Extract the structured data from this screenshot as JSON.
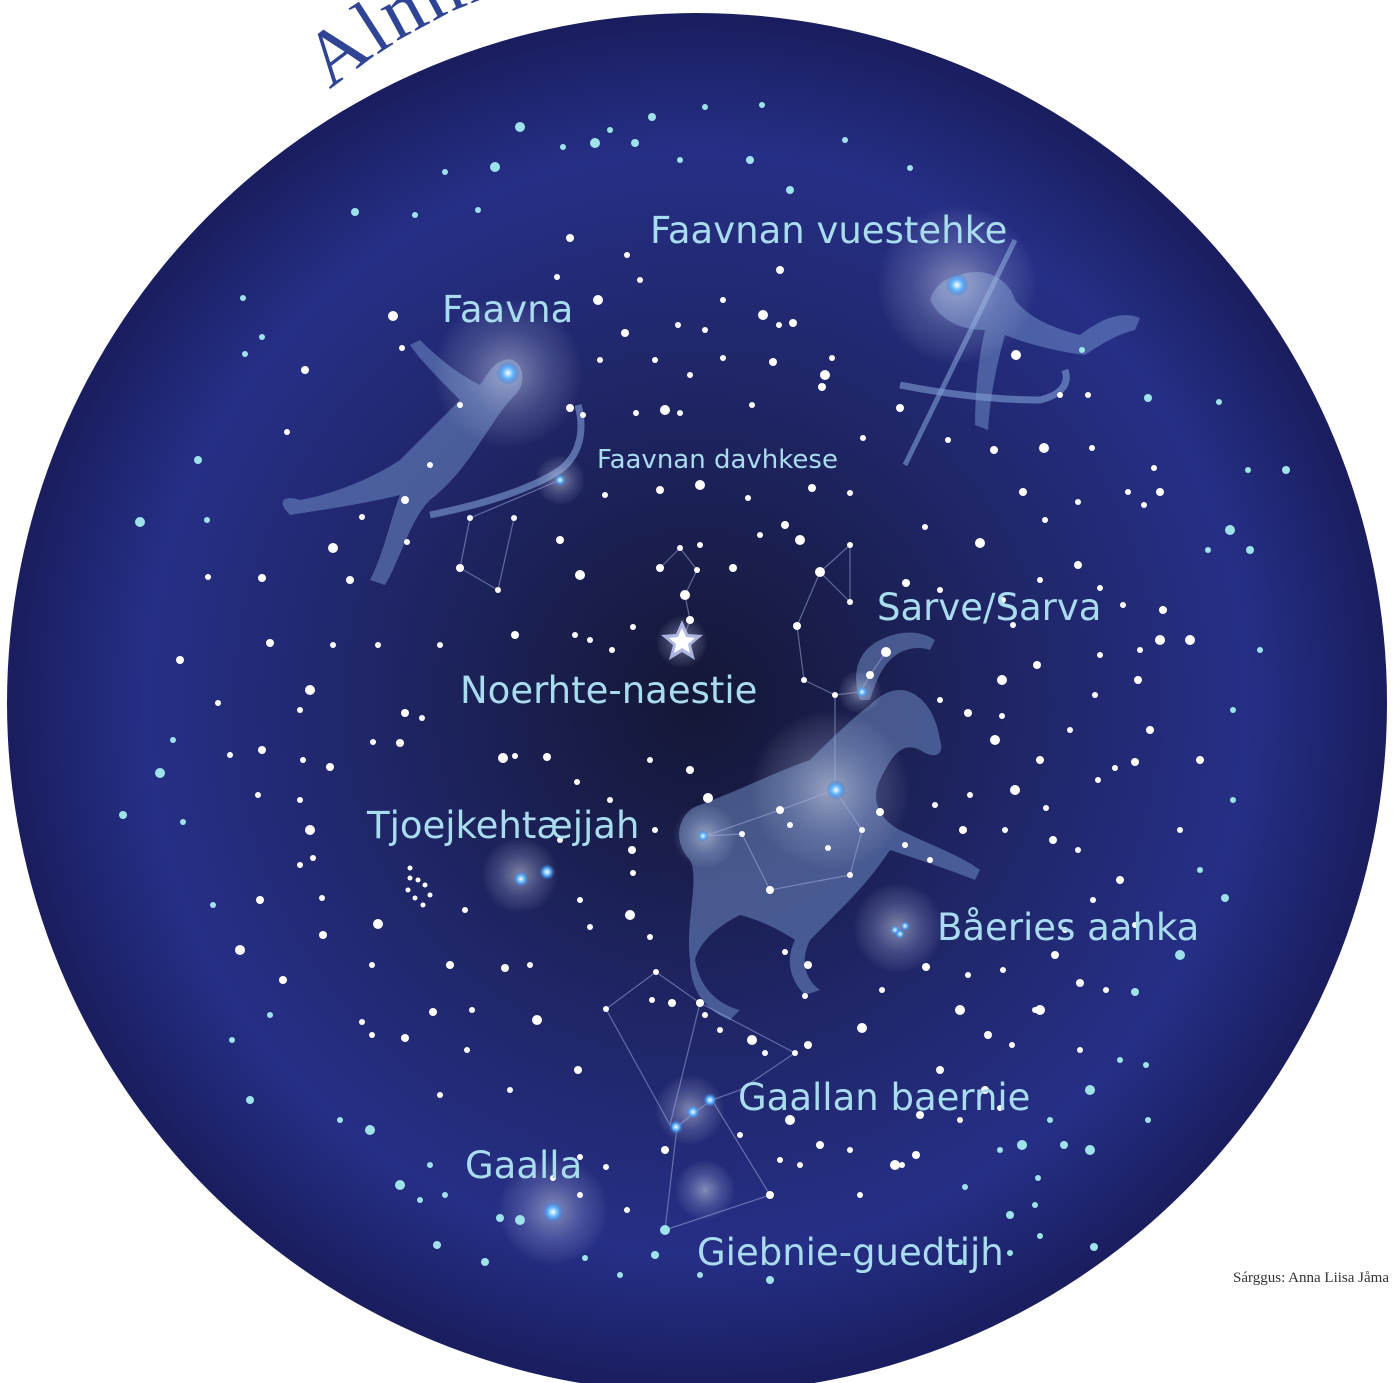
{
  "title": "Almmien vuvdu",
  "labels": {
    "faavnan_vuestehke": "Faavnan vuestehke",
    "faavna": "Faavna",
    "faavnan_davhkese": "Faavnan davhkese",
    "sarve_sarva": "Sarve/Sarva",
    "noerhte_naestie": "Noerhte-naestie",
    "tjoejkehtaejjah": "Tjoejkehtæjjah",
    "baeries_aahka": "Båeries aahka",
    "gaallan_baernie": "Gaallan baernie",
    "gaalla": "Gaalla",
    "giebnie_guedtijh": "Giebnie-guedtijh"
  },
  "credit": "Sárggus: Anna Liisa Jåma",
  "colors": {
    "sky_center": "#141735",
    "sky_mid": "#222a7a",
    "sky_edge": "#1b1f66",
    "label": "#a9dcef",
    "title": "#2f4494",
    "figure": "#7f9fd6"
  }
}
